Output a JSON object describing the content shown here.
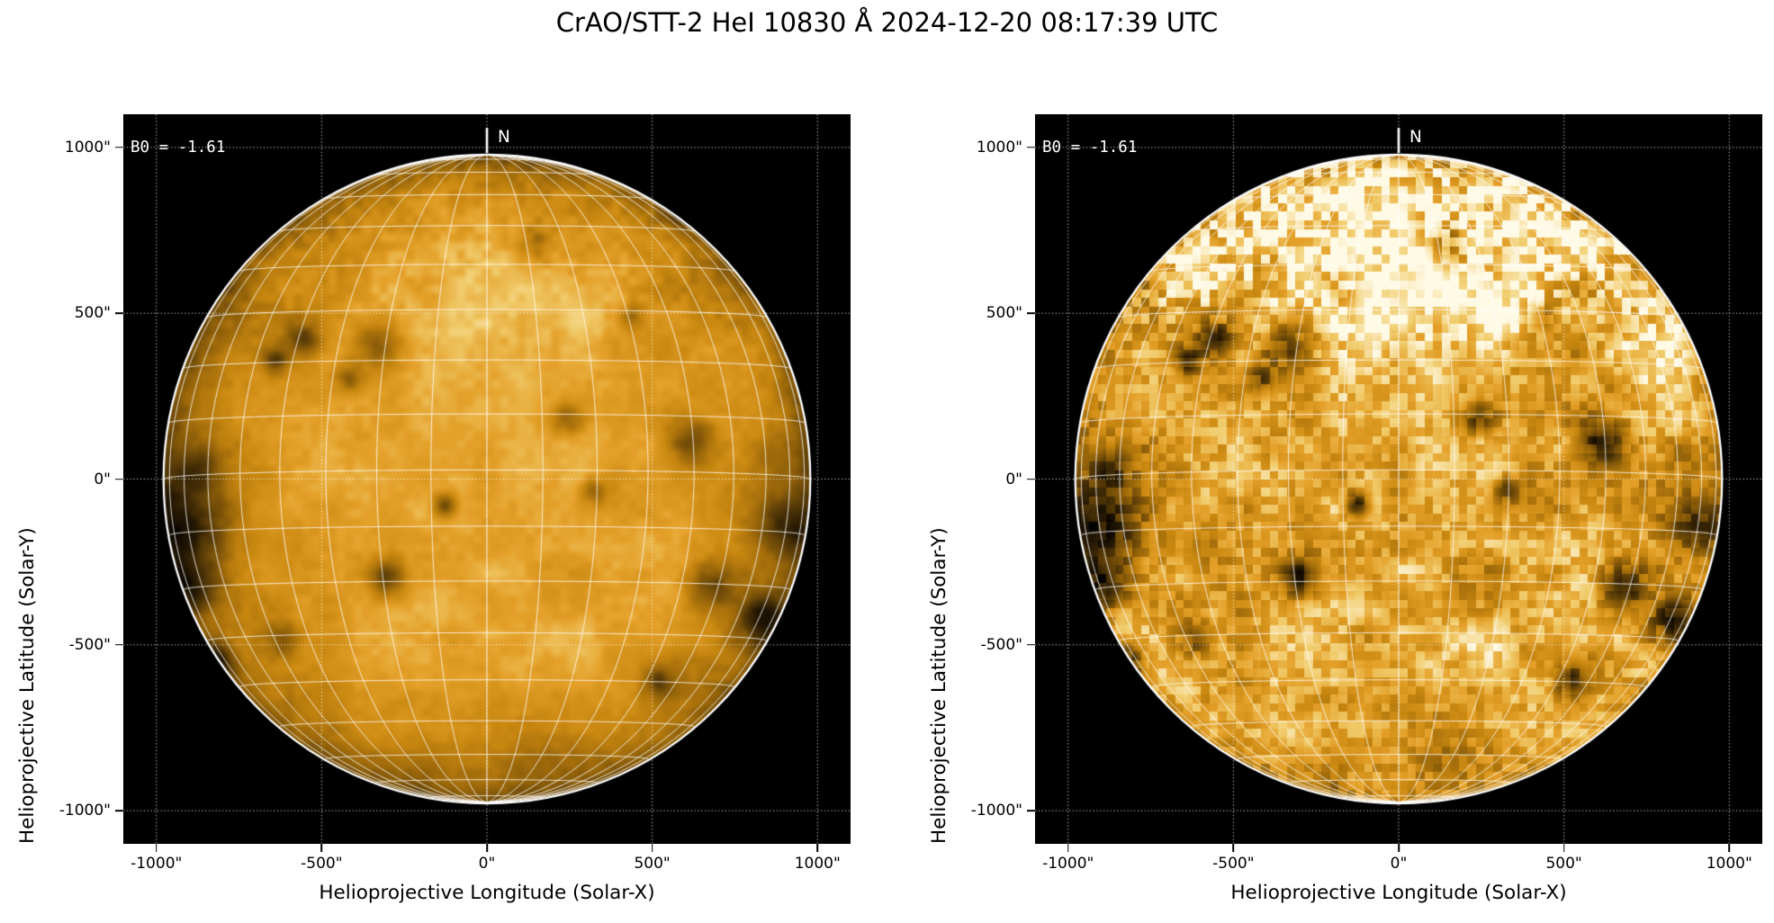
{
  "figure": {
    "title": "CrAO/STT-2 HeI 10830 Å 2024-12-20 08:17:39 UTC"
  },
  "panels": [
    {
      "id": "disk-raw",
      "b0_annotation": "B0 = -1.61",
      "north_label": "N",
      "xlabel": "Helioprojective Longitude (Solar-X)",
      "ylabel": "Helioprojective Latitude (Solar-Y)",
      "xticks": [
        "-1000\"",
        "-500\"",
        "0\"",
        "500\"",
        "1000\""
      ],
      "yticks": [
        "1000\"",
        "500\"",
        "0\"",
        "-500\"",
        "-1000\""
      ]
    },
    {
      "id": "disk-enhanced",
      "b0_annotation": "B0 = -1.61",
      "north_label": "N",
      "xlabel": "Helioprojective Longitude (Solar-X)",
      "ylabel": "Helioprojective Latitude (Solar-Y)",
      "xticks": [
        "-1000\"",
        "-500\"",
        "0\"",
        "500\"",
        "1000\""
      ],
      "yticks": [
        "1000\"",
        "500\"",
        "0\"",
        "-500\"",
        "-1000\""
      ]
    }
  ],
  "chart_data": {
    "type": "heatmap",
    "title": "CrAO/STT-2 HeI 10830 Å 2024-12-20 08:17:39 UTC",
    "description": "Two full-disk solar filtergrams in HeI 10830 Å with heliographic 10-degree grid overlay; left panel shows intensity with limb darkening, right panel shows the same disk contrast-enhanced and flat-fielded.",
    "b0_deg": -1.61,
    "axes": {
      "xlabel": "Helioprojective Longitude (Solar-X)",
      "ylabel": "Helioprojective Latitude (Solar-Y)",
      "unit": "arcsec",
      "xlim": [
        -1100,
        1100
      ],
      "ylim": [
        -1100,
        1100
      ],
      "tick_values": [
        -1000,
        -500,
        0,
        500,
        1000
      ],
      "grid": "dotted white lines at tick positions",
      "plot_background": "#000000"
    },
    "solar_disk": {
      "radius_arcsec": 975,
      "heliographic_grid_spacing_deg": 10,
      "limb_color": "#ffffff",
      "grid_color": "rgba(255,255,255,0.8)"
    },
    "panels": [
      {
        "name": "HeI 10830 intensity, limb-darkened",
        "render": {
          "base": 0.72,
          "ampA": 0.1,
          "ampB": 0.09,
          "ampC": 0.07,
          "spot_gain": 0.85,
          "bright_gain": 0.45,
          "cap_gain": 0.035,
          "limb_dark": 0.3,
          "rim_dark": 0.05,
          "blocky": false
        }
      },
      {
        "name": "HeI 10830 intensity, contrast enhanced",
        "render": {
          "base": 0.7,
          "ampA": 0.2,
          "ampB": 0.2,
          "ampC": 0.26,
          "spot_gain": 1.25,
          "bright_gain": 1.0,
          "cap_gain": 0.17,
          "limb_dark": 0.0,
          "rim_dark": 0.1,
          "blocky": true
        }
      }
    ],
    "features": {
      "format": "[x_arcsec, y_arcsec, radius_arcsec, strength]",
      "dark_regions": [
        [
          -905,
          -130,
          120,
          0.5
        ],
        [
          -885,
          -310,
          80,
          0.38
        ],
        [
          -870,
          40,
          70,
          0.3
        ],
        [
          -560,
          425,
          55,
          0.45
        ],
        [
          -640,
          360,
          40,
          0.42
        ],
        [
          -330,
          400,
          70,
          0.45
        ],
        [
          -415,
          300,
          45,
          0.28
        ],
        [
          -300,
          -295,
          65,
          0.42
        ],
        [
          -125,
          -80,
          42,
          0.33
        ],
        [
          245,
          185,
          52,
          0.38
        ],
        [
          330,
          -40,
          48,
          0.32
        ],
        [
          620,
          115,
          65,
          0.45
        ],
        [
          680,
          -320,
          70,
          0.45
        ],
        [
          830,
          -425,
          75,
          0.48
        ],
        [
          525,
          -610,
          55,
          0.38
        ],
        [
          -620,
          -480,
          55,
          0.33
        ],
        [
          -835,
          -560,
          65,
          0.4
        ],
        [
          145,
          710,
          48,
          0.25
        ],
        [
          590,
          820,
          60,
          0.28
        ],
        [
          905,
          -140,
          90,
          0.35
        ],
        [
          430,
          485,
          45,
          0.25
        ]
      ],
      "bright_regions": [
        [
          0,
          640,
          260,
          0.1
        ],
        [
          -380,
          520,
          140,
          0.1
        ],
        [
          380,
          560,
          160,
          0.1
        ],
        [
          120,
          -180,
          280,
          0.07
        ],
        [
          800,
          420,
          110,
          0.09
        ],
        [
          -150,
          300,
          180,
          0.05
        ]
      ]
    },
    "colors": {
      "figure_background": "#ffffff",
      "text": "#000000",
      "annotation_text": "#ffffff",
      "colormap": [
        [
          0.0,
          "#000000"
        ],
        [
          0.15,
          "#281a04"
        ],
        [
          0.3,
          "#5c3e08"
        ],
        [
          0.45,
          "#96640a"
        ],
        [
          0.6,
          "#c88710"
        ],
        [
          0.72,
          "#e4a028"
        ],
        [
          0.85,
          "#f2cd6e"
        ],
        [
          1.0,
          "#fffae6"
        ]
      ]
    }
  }
}
